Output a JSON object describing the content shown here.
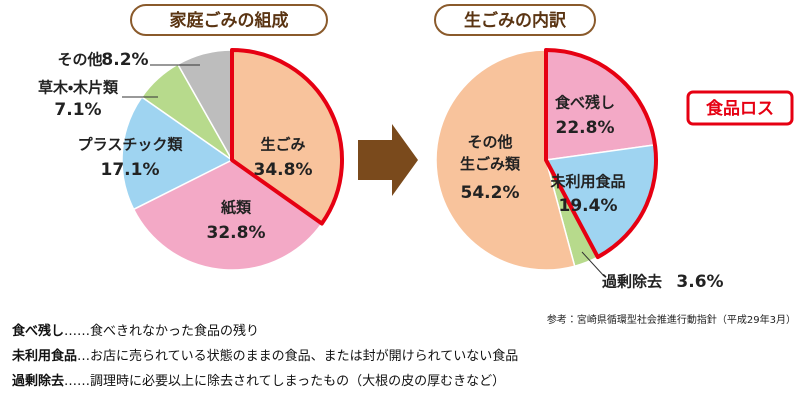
{
  "chart_data": [
    {
      "type": "pie",
      "title": "家庭ごみの組成",
      "categories": [
        "生ごみ",
        "紙類",
        "プラスチック類",
        "草木・木片類",
        "その他"
      ],
      "values": [
        34.8,
        32.8,
        17.1,
        7.1,
        8.2
      ],
      "value_labels": [
        "34.8%",
        "32.8%",
        "17.1%",
        "7.1%",
        "8.2%"
      ],
      "colors": [
        "#f8c39c",
        "#f3a9c6",
        "#9fd4f1",
        "#b7da8c",
        "#bdbdbd"
      ],
      "highlight": [
        "生ごみ"
      ],
      "highlight_color": "#e60012"
    },
    {
      "type": "pie",
      "title": "生ごみの内訳",
      "categories": [
        "食べ残し",
        "未利用食品",
        "過剰除去",
        "その他\n生ごみ類"
      ],
      "values": [
        22.8,
        19.4,
        3.6,
        54.2
      ],
      "value_labels": [
        "22.8%",
        "19.4%",
        "3.6%",
        "54.2%"
      ],
      "colors": [
        "#f3a9c6",
        "#9fd4f1",
        "#b7da8c",
        "#f8c39c"
      ],
      "highlight": [
        "食べ残し",
        "未利用食品"
      ],
      "highlight_color": "#e60012",
      "annotation": "食品ロス"
    }
  ],
  "source": "参考：宮崎県循環型社会推進行動指針（平成29年3月）",
  "notes": [
    {
      "term": "食べ残し",
      "text": "……食べきれなかった食品の残り"
    },
    {
      "term": "未利用食品",
      "text": "…お店に売られている状態のままの食品、または封が開けられていない食品"
    },
    {
      "term": "過剰除去",
      "text": "……調理時に必要以上に除去されてしまったもの（大根の皮の厚むきなど）"
    }
  ]
}
